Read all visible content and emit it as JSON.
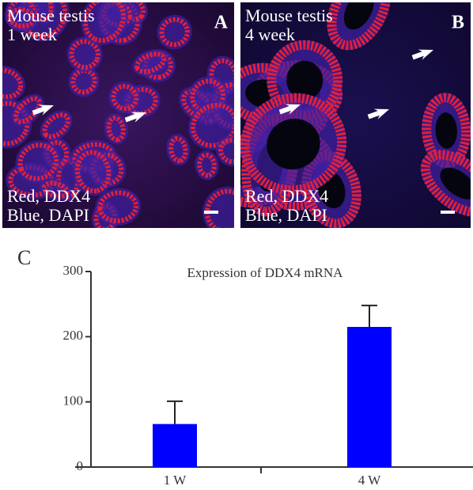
{
  "panels": [
    {
      "label": "A",
      "title_lines": [
        "Mouse testis",
        "1 week"
      ],
      "stain_lines": [
        "Red, DDX4",
        "Blue, DAPI"
      ]
    },
    {
      "label": "B",
      "title_lines": [
        "Mouse testis",
        "4 week"
      ],
      "stain_lines": [
        "Red, DDX4",
        "Blue, DAPI"
      ]
    }
  ],
  "chart_data": {
    "type": "bar",
    "panel_label": "C",
    "title": "Expression of DDX4 mRNA",
    "categories": [
      "1 W",
      "4 W"
    ],
    "values": [
      66,
      215
    ],
    "errors": [
      35,
      33
    ],
    "color": "#0000ff",
    "ylim": [
      0,
      300
    ],
    "yticks": [
      0,
      100,
      200,
      300
    ],
    "grid": false
  }
}
